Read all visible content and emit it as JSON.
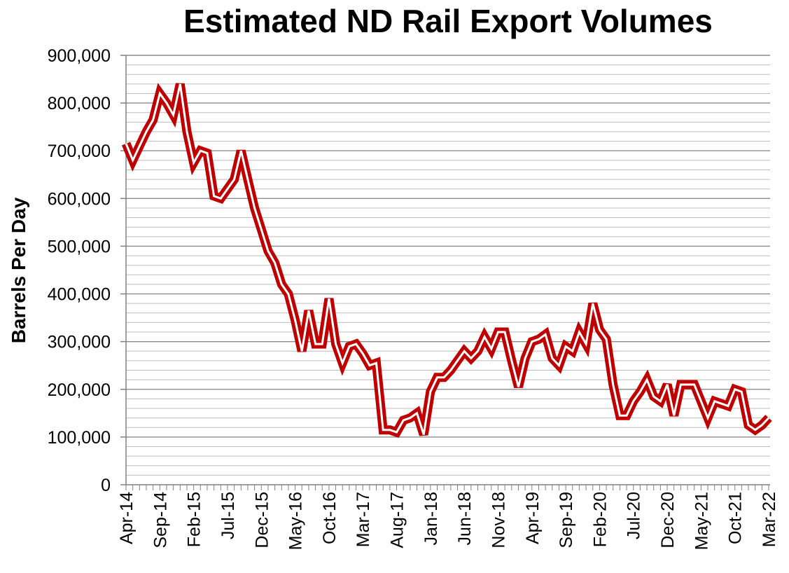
{
  "chart_data": {
    "type": "line",
    "title": "Estimated ND Rail Export Volumes",
    "xlabel": "",
    "ylabel": "Barrels Per Day",
    "ylim": [
      0,
      900000
    ],
    "yticks": [
      "0",
      "100,000",
      "200,000",
      "300,000",
      "400,000",
      "500,000",
      "600,000",
      "700,000",
      "800,000",
      "900,000"
    ],
    "xticks": [
      "Apr-14",
      "Sep-14",
      "Feb-15",
      "Jul-15",
      "Dec-15",
      "May-16",
      "Oct-16",
      "Mar-17",
      "Aug-17",
      "Jan-18",
      "Jun-18",
      "Nov-18",
      "Apr-19",
      "Sep-19",
      "Feb-20",
      "Jul-20",
      "Dec-20",
      "May-21",
      "Oct-21",
      "Mar-22"
    ],
    "grid": "horizontal",
    "line_color": "#c00000",
    "x": [
      "Apr-14",
      "May-14",
      "Jun-14",
      "Jul-14",
      "Aug-14",
      "Sep-14",
      "Oct-14",
      "Nov-14",
      "Dec-14",
      "Jan-15",
      "Feb-15",
      "Mar-15",
      "Apr-15",
      "May-15",
      "Jun-15",
      "Jul-15",
      "Aug-15",
      "Sep-15",
      "Oct-15",
      "Nov-15",
      "Dec-15",
      "Jan-16",
      "Feb-16",
      "Mar-16",
      "Apr-16",
      "May-16",
      "Jun-16",
      "Jul-16",
      "Aug-16",
      "Sep-16",
      "Oct-16",
      "Nov-16",
      "Dec-16",
      "Jan-17",
      "Feb-17",
      "Mar-17",
      "Apr-17",
      "May-17",
      "Jun-17",
      "Jul-17",
      "Aug-17",
      "Sep-17",
      "Oct-17",
      "Nov-17",
      "Dec-17",
      "Jan-18",
      "Feb-18",
      "Mar-18",
      "Apr-18",
      "May-18",
      "Jun-18",
      "Jul-18",
      "Aug-18",
      "Sep-18",
      "Oct-18",
      "Nov-18",
      "Dec-18",
      "Jan-19",
      "Feb-19",
      "Mar-19",
      "Apr-19",
      "May-19",
      "Jun-19",
      "Jul-19",
      "Aug-19",
      "Sep-19",
      "Oct-19",
      "Nov-19",
      "Dec-19",
      "Jan-20",
      "Feb-20",
      "Mar-20",
      "Apr-20",
      "May-20",
      "Jun-20",
      "Jul-20",
      "Aug-20",
      "Sep-20",
      "Oct-20",
      "Nov-20",
      "Dec-20",
      "Jan-21",
      "Feb-21",
      "Mar-21",
      "Apr-21",
      "May-21",
      "Jun-21",
      "Jul-21",
      "Aug-21",
      "Sep-21",
      "Oct-21",
      "Nov-21",
      "Dec-21",
      "Jan-22",
      "Feb-22",
      "Mar-22"
    ],
    "series": [
      {
        "values": [
          715000,
          680000,
          710000,
          740000,
          765000,
          820000,
          800000,
          775000,
          840000,
          740000,
          675000,
          700000,
          695000,
          605000,
          600000,
          620000,
          640000,
          700000,
          640000,
          580000,
          535000,
          490000,
          465000,
          420000,
          400000,
          345000,
          280000,
          365000,
          295000,
          295000,
          390000,
          295000,
          255000,
          290000,
          295000,
          275000,
          250000,
          255000,
          115000,
          115000,
          110000,
          135000,
          140000,
          150000,
          105000,
          195000,
          225000,
          225000,
          240000,
          260000,
          280000,
          265000,
          280000,
          310000,
          285000,
          320000,
          320000,
          260000,
          205000,
          265000,
          300000,
          305000,
          315000,
          265000,
          250000,
          290000,
          280000,
          320000,
          295000,
          380000,
          325000,
          305000,
          210000,
          145000,
          145000,
          175000,
          195000,
          220000,
          185000,
          175000,
          210000,
          145000,
          210000,
          210000,
          210000,
          175000,
          140000,
          175000,
          170000,
          165000,
          200000,
          195000,
          125000,
          115000,
          125000,
          140000
        ]
      }
    ]
  }
}
